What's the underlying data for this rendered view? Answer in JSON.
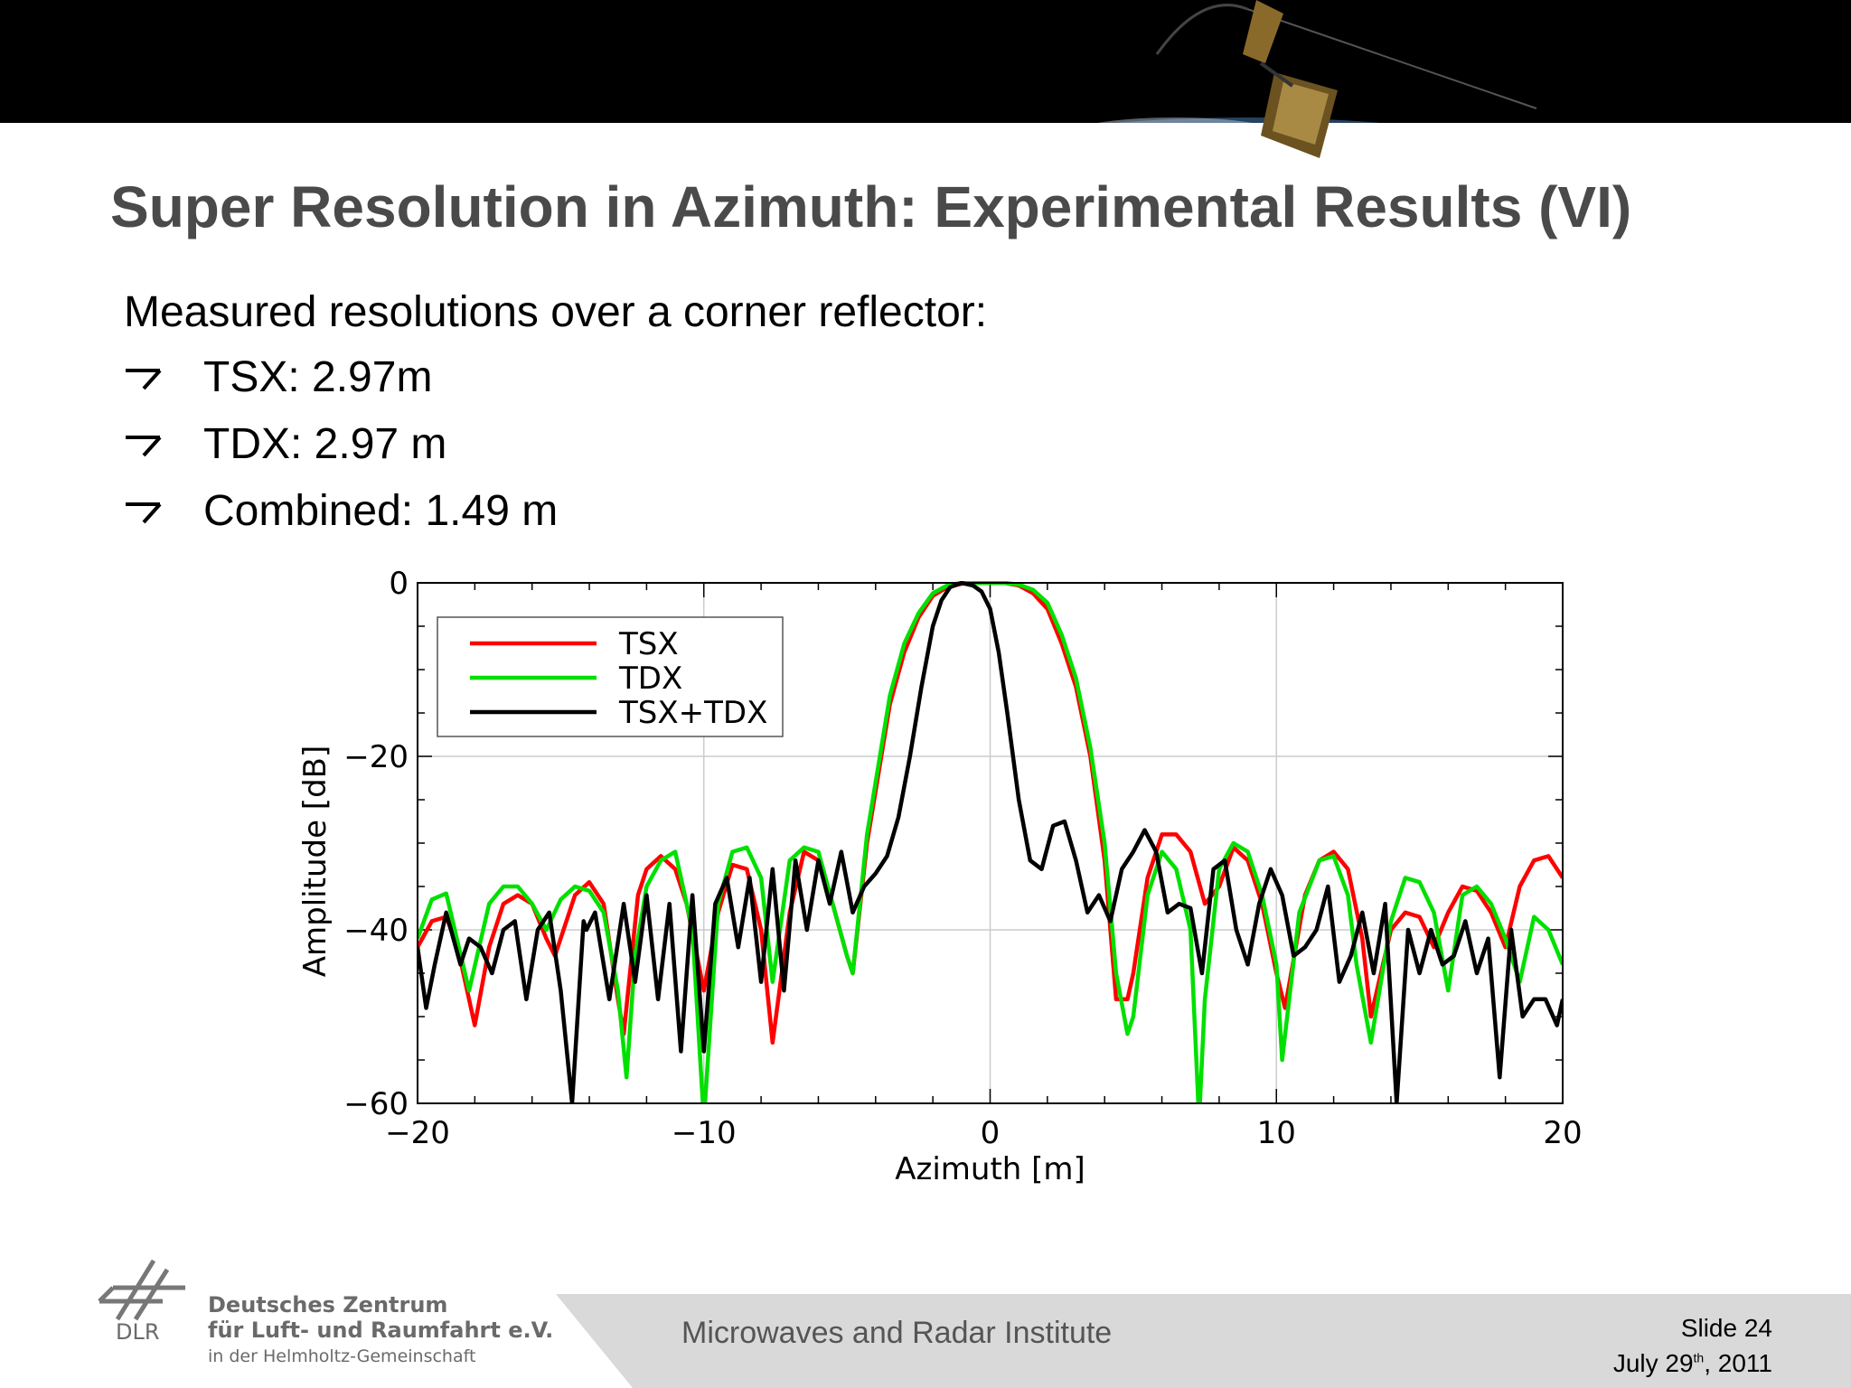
{
  "slide": {
    "title": "Super Resolution in Azimuth: Experimental Results (VI)",
    "intro": "Measured resolutions over a corner reflector:",
    "bullets": [
      "TSX: 2.97m",
      "TDX: 2.97 m",
      "Combined: 1.49 m"
    ]
  },
  "footer": {
    "institute": "Microwaves and Radar Institute",
    "slide_label": "Slide 24",
    "date_prefix": "July 29",
    "date_sup": "th",
    "date_suffix": ", 2011",
    "org_abbrev": "DLR",
    "org_line1": "Deutsches Zentrum",
    "org_line2": "für Luft- und Raumfahrt e.V.",
    "org_line3": "in der Helmholtz-Gemeinschaft"
  },
  "colors": {
    "tsx": "#ff0000",
    "tdx": "#00e000",
    "combined": "#000000",
    "title": "#4a4a4a"
  },
  "chart_data": {
    "type": "line",
    "xlabel": "Azimuth [m]",
    "ylabel": "Amplitude [dB]",
    "xlim": [
      -20,
      20
    ],
    "ylim": [
      -60,
      0
    ],
    "xticks": [
      -20,
      -10,
      0,
      10,
      20
    ],
    "yticks": [
      0,
      -20,
      -40,
      -60
    ],
    "xtick_labels": [
      "−20",
      "−10",
      "0",
      "10",
      "20"
    ],
    "ytick_labels": [
      "0",
      "−20",
      "−40",
      "−60"
    ],
    "grid": true,
    "legend": "top-left",
    "series": [
      {
        "name": "TSX",
        "color": "#ff0000",
        "x": [
          -20,
          -19.5,
          -19,
          -18.6,
          -18,
          -17.5,
          -17,
          -16.5,
          -16,
          -15.5,
          -15.2,
          -14.5,
          -14,
          -13.5,
          -13,
          -12.8,
          -12.3,
          -12,
          -11.5,
          -11,
          -10.6,
          -10,
          -9.5,
          -9,
          -8.5,
          -8,
          -7.6,
          -7,
          -6.5,
          -6,
          -5.5,
          -5,
          -4.8,
          -4.3,
          -4,
          -3.5,
          -3,
          -2.5,
          -2,
          -1.5,
          -1,
          -0.5,
          0,
          0.5,
          1,
          1.5,
          2,
          2.5,
          3,
          3.5,
          4,
          4.4,
          4.8,
          5,
          5.5,
          6,
          6.5,
          7,
          7.5,
          8,
          8.5,
          9,
          9.5,
          10,
          10.3,
          11,
          11.5,
          12,
          12.5,
          13,
          13.3,
          14,
          14.5,
          15,
          15.5,
          16,
          16.5,
          17,
          17.5,
          18,
          18.5,
          19,
          19.5,
          20
        ],
        "y": [
          -42,
          -39,
          -38.5,
          -42,
          -51,
          -42,
          -37,
          -36,
          -37,
          -41,
          -43,
          -36,
          -34.5,
          -37,
          -48,
          -52,
          -36,
          -33,
          -31.5,
          -33,
          -37,
          -47,
          -38,
          -32.5,
          -33,
          -40,
          -53,
          -38,
          -31,
          -32,
          -37,
          -43,
          -45,
          -30,
          -24,
          -14,
          -8,
          -4,
          -1.5,
          -0.5,
          -0.1,
          0,
          0,
          0,
          -0.3,
          -1.2,
          -3,
          -7,
          -12,
          -20,
          -32,
          -48,
          -48,
          -45,
          -34,
          -29,
          -29,
          -31,
          -37,
          -35,
          -30.5,
          -32,
          -37,
          -45,
          -49,
          -36,
          -32,
          -31,
          -33,
          -41,
          -50,
          -40,
          -38,
          -38.5,
          -42,
          -38,
          -35,
          -35.5,
          -38,
          -42,
          -35,
          -32,
          -31.5,
          -34
        ]
      },
      {
        "name": "TDX",
        "color": "#00e000",
        "x": [
          -20,
          -19.5,
          -19,
          -18.7,
          -18.2,
          -17.5,
          -17,
          -16.5,
          -16,
          -15.5,
          -15,
          -14.5,
          -14,
          -13.5,
          -13,
          -12.7,
          -12.4,
          -12,
          -11.5,
          -11,
          -10.4,
          -10,
          -9.5,
          -9,
          -8.5,
          -8,
          -7.6,
          -7,
          -6.5,
          -6,
          -5.5,
          -5,
          -4.8,
          -4.3,
          -4,
          -3.5,
          -3,
          -2.5,
          -2,
          -1.5,
          -1,
          -0.5,
          0,
          0.5,
          1,
          1.5,
          2,
          2.5,
          3,
          3.5,
          4,
          4.4,
          4.8,
          5,
          5.5,
          6,
          6.5,
          7,
          7.3,
          7.5,
          8,
          8.5,
          9,
          9.5,
          10,
          10.2,
          10.8,
          11.5,
          12,
          12.5,
          12.8,
          13.3,
          14,
          14.5,
          15,
          15.5,
          16,
          16.5,
          17,
          17.5,
          18,
          18.5,
          19,
          19.5,
          20
        ],
        "y": [
          -41,
          -36.5,
          -35.8,
          -40,
          -47,
          -37,
          -35,
          -35,
          -37,
          -40,
          -36.5,
          -35,
          -35.5,
          -38,
          -47,
          -57,
          -43,
          -35,
          -32,
          -31,
          -40,
          -62,
          -37,
          -31,
          -30.5,
          -34,
          -46,
          -32,
          -30.5,
          -31,
          -37,
          -43,
          -45,
          -29,
          -23,
          -13,
          -7,
          -3.5,
          -1.2,
          -0.3,
          0,
          0,
          0,
          0,
          -0.2,
          -0.8,
          -2.3,
          -6,
          -11,
          -19,
          -30,
          -45,
          -52,
          -50,
          -36,
          -31,
          -33,
          -40,
          -62,
          -48,
          -33,
          -30,
          -31,
          -36,
          -44,
          -55,
          -38,
          -32,
          -31.5,
          -36,
          -44,
          -53,
          -39,
          -34,
          -34.5,
          -38,
          -47,
          -36,
          -35,
          -37,
          -41,
          -46,
          -38.5,
          -40,
          -44
        ]
      },
      {
        "name": "TSX+TDX",
        "color": "#000000",
        "x": [
          -20,
          -19.7,
          -19.4,
          -19,
          -18.5,
          -18.2,
          -17.8,
          -17.4,
          -17,
          -16.6,
          -16.2,
          -15.8,
          -15.4,
          -15,
          -14.6,
          -14.2,
          -14.1,
          -13.8,
          -13.3,
          -12.8,
          -12.4,
          -12,
          -11.6,
          -11.2,
          -10.8,
          -10.4,
          -10,
          -9.6,
          -9.2,
          -8.8,
          -8.4,
          -8,
          -7.6,
          -7.2,
          -6.8,
          -6.4,
          -6,
          -5.6,
          -5.2,
          -4.8,
          -4.4,
          -4,
          -3.6,
          -3.2,
          -2.8,
          -2.4,
          -2,
          -1.7,
          -1.4,
          -1,
          -0.6,
          -0.3,
          0,
          0.3,
          0.6,
          1,
          1.4,
          1.8,
          2.2,
          2.6,
          3,
          3.4,
          3.8,
          4.2,
          4.6,
          5,
          5.4,
          5.8,
          6.2,
          6.6,
          7,
          7.4,
          7.8,
          8.2,
          8.6,
          9,
          9.4,
          9.8,
          10.2,
          10.6,
          11,
          11.4,
          11.8,
          12.2,
          12.6,
          13,
          13.4,
          13.8,
          14.2,
          14.6,
          15,
          15.4,
          15.8,
          16.2,
          16.6,
          17,
          17.4,
          17.8,
          18.2,
          18.6,
          19,
          19.4,
          19.8,
          20
        ],
        "y": [
          -42,
          -49,
          -44,
          -38,
          -44,
          -41,
          -42,
          -45,
          -40,
          -39,
          -48,
          -40,
          -38,
          -47,
          -60,
          -39,
          -40,
          -38,
          -48,
          -37,
          -46,
          -36,
          -48,
          -37,
          -54,
          -36,
          -54,
          -37,
          -34,
          -42,
          -34,
          -46,
          -33,
          -47,
          -32,
          -40,
          -32,
          -37,
          -31,
          -38,
          -35,
          -33.5,
          -31.5,
          -27,
          -20,
          -12,
          -5,
          -2,
          -0.5,
          0,
          -0.3,
          -1,
          -3,
          -8,
          -15,
          -25,
          -32,
          -33,
          -28,
          -27.5,
          -32,
          -38,
          -36,
          -39,
          -33,
          -31,
          -28.5,
          -31,
          -38,
          -37,
          -37.5,
          -45,
          -33,
          -32,
          -40,
          -44,
          -37,
          -33,
          -36,
          -43,
          -42,
          -40,
          -35,
          -46,
          -43,
          -38,
          -45,
          -37,
          -60,
          -40,
          -45,
          -40,
          -44,
          -43,
          -39,
          -45,
          -41,
          -57,
          -40,
          -50,
          -48,
          -48,
          -51,
          -48
        ]
      }
    ]
  }
}
